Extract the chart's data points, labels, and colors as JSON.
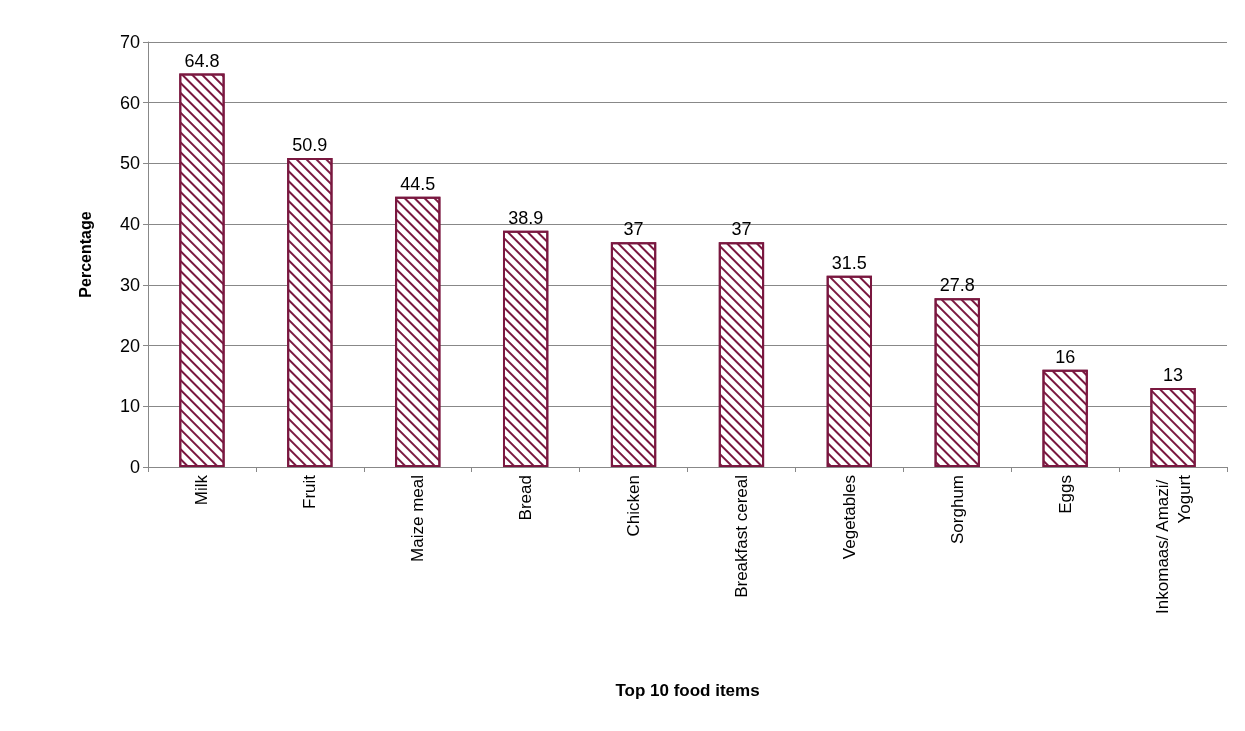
{
  "chart_data": {
    "type": "bar",
    "xlabel": "Top 10 food items",
    "ylabel": "Percentage",
    "categories": [
      "Milk",
      "Fruit",
      "Maize meal",
      "Bread",
      "Chicken",
      "Breakfast cereal",
      "Vegetables",
      "Sorghum",
      "Eggs",
      "Inkomaas/ Amazi/ Yogurt"
    ],
    "values": [
      64.8,
      50.9,
      44.5,
      38.9,
      37,
      37,
      31.5,
      27.8,
      16,
      13
    ],
    "color": "#7a1840",
    "ylim": [
      0,
      70
    ],
    "yticks": [
      0,
      10,
      20,
      30,
      40,
      50,
      60,
      70
    ],
    "grid": "y",
    "data_labels": true
  }
}
